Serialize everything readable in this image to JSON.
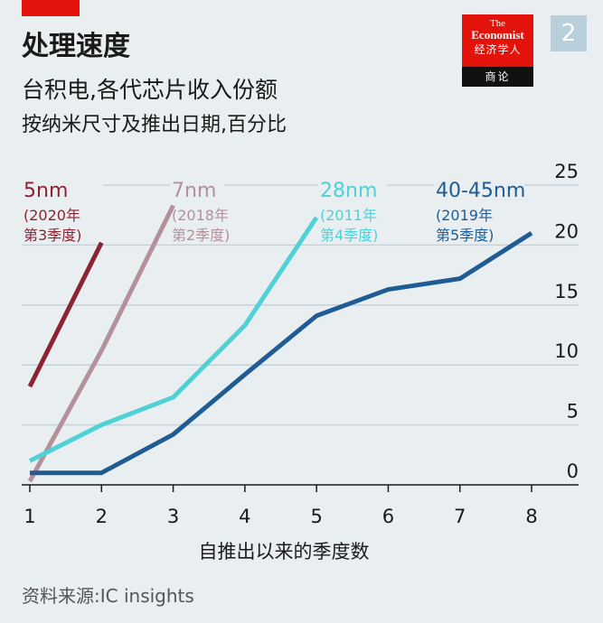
{
  "header": {
    "title": "处理速度",
    "subtitle": "台积电,各代芯片收入份额",
    "subtitle2": "按纳米尺寸及推出日期,百分比",
    "logo_the": "The",
    "logo_economist": "Economist",
    "logo_cn_top": "经济学人",
    "logo_cn_bottom": "商论",
    "badge": "2"
  },
  "source": "资料来源:IC insights",
  "colors": {
    "background": "#e9eef1",
    "accent_red": "#e3120b",
    "s5nm": "#8b2332",
    "s7nm": "#b2919a",
    "s28nm": "#4fd1d6",
    "s40nm": "#1f5c94",
    "grid": "#c5d2da"
  },
  "chart_data": {
    "type": "line",
    "xlabel": "自推出以来的季度数",
    "ylabel": "",
    "x_ticks": [
      "1",
      "2",
      "3",
      "4",
      "5",
      "6",
      "7",
      "8"
    ],
    "y_ticks": [
      "0",
      "5",
      "10",
      "15",
      "20",
      "25"
    ],
    "xlim": [
      1,
      8
    ],
    "ylim": [
      0,
      25
    ],
    "grid": true,
    "series": [
      {
        "name": "5nm",
        "note_line1": "(2020年",
        "note_line2": "第3季度)",
        "color": "#8b2332",
        "x": [
          1,
          2
        ],
        "values": [
          8.2,
          20.2
        ]
      },
      {
        "name": "7nm",
        "note_line1": "(2018年",
        "note_line2": "第2季度)",
        "color": "#b2919a",
        "x": [
          1,
          2,
          3
        ],
        "values": [
          0.3,
          11.2,
          23.3
        ]
      },
      {
        "name": "28nm",
        "note_line1": "(2011年",
        "note_line2": "第4季度)",
        "color": "#4fd1d6",
        "x": [
          1,
          2,
          3,
          4,
          5
        ],
        "values": [
          2.0,
          5.0,
          7.3,
          13.3,
          22.3
        ]
      },
      {
        "name": "40-45nm",
        "note_line1": "(2019年",
        "note_line2": "第5季度)",
        "color": "#1f5c94",
        "x": [
          1,
          2,
          3,
          4,
          5,
          6,
          7,
          8
        ],
        "values": [
          1.0,
          1.0,
          4.2,
          9.2,
          14.1,
          16.3,
          17.2,
          21.0
        ]
      }
    ]
  }
}
